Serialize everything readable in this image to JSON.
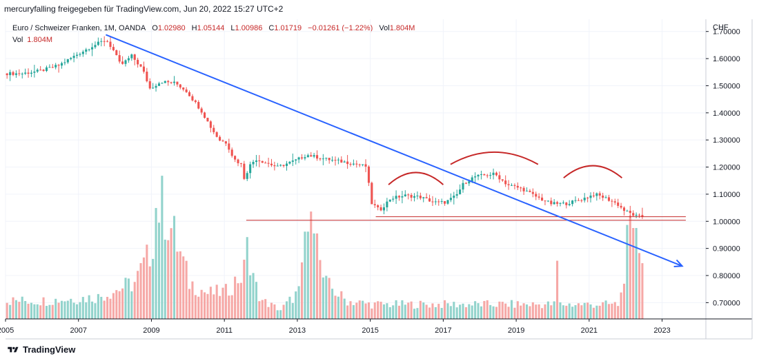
{
  "header": {
    "text": "mercuryfalling freigegeben für TradingView.com, Jun 20, 2022 15:27 UTC+2"
  },
  "legend": {
    "symbol": "Euro / Schweizer Franken, 1M, OANDA",
    "o_label": "O",
    "o_value": "1.02980",
    "h_label": "H",
    "h_value": "1.05144",
    "l_label": "L",
    "l_value": "1.00986",
    "c_label": "C",
    "c_value": "1.01719",
    "change": "−0.01261 (−1.22%)",
    "vol_label": "Vol",
    "vol_value": "1.804M",
    "vol2_label": "Vol",
    "vol2_value": "1.804M"
  },
  "footer": {
    "brand": "TradingView",
    "logo_icon": "tradingview-logo-icon"
  },
  "colors": {
    "up": "#26a69a",
    "down": "#ef5350",
    "trend": "#2962ff",
    "annotation": "#c62828",
    "vol_up": "#92d3cc",
    "vol_down": "#f6a8a6"
  },
  "chart_data": {
    "type": "candlestick",
    "interval": "1M",
    "y_axis_title": "CHF",
    "ylim": [
      0.64,
      1.745
    ],
    "y_ticks": [
      0.7,
      0.8,
      0.9,
      1.0,
      1.1,
      1.2,
      1.3,
      1.4,
      1.5,
      1.6,
      1.7
    ],
    "y_tick_labels": [
      "0.70000",
      "0.80000",
      "0.90000",
      "1.00000",
      "1.10000",
      "1.20000",
      "1.30000",
      "1.40000",
      "1.50000",
      "1.60000",
      "1.70000"
    ],
    "x_range": [
      2005.0,
      2024.2
    ],
    "x_ticks": [
      2005,
      2007,
      2009,
      2011,
      2013,
      2015,
      2017,
      2019,
      2021,
      2023
    ],
    "x_tick_labels": [
      "2005",
      "2007",
      "2009",
      "2011",
      "2013",
      "2015",
      "2017",
      "2019",
      "2021",
      "2023"
    ],
    "close_path": [
      [
        2005.0,
        1.545
      ],
      [
        2005.5,
        1.545
      ],
      [
        2006.0,
        1.555
      ],
      [
        2006.5,
        1.575
      ],
      [
        2007.0,
        1.615
      ],
      [
        2007.4,
        1.645
      ],
      [
        2007.8,
        1.67
      ],
      [
        2008.0,
        1.63
      ],
      [
        2008.2,
        1.575
      ],
      [
        2008.5,
        1.61
      ],
      [
        2008.8,
        1.56
      ],
      [
        2009.0,
        1.49
      ],
      [
        2009.3,
        1.515
      ],
      [
        2009.7,
        1.51
      ],
      [
        2010.0,
        1.48
      ],
      [
        2010.4,
        1.41
      ],
      [
        2010.7,
        1.34
      ],
      [
        2010.9,
        1.3
      ],
      [
        2011.1,
        1.29
      ],
      [
        2011.3,
        1.23
      ],
      [
        2011.5,
        1.21
      ],
      [
        2011.6,
        1.15
      ],
      [
        2011.7,
        1.2
      ],
      [
        2011.9,
        1.23
      ],
      [
        2012.5,
        1.2
      ],
      [
        2013.0,
        1.225
      ],
      [
        2013.3,
        1.245
      ],
      [
        2013.8,
        1.23
      ],
      [
        2014.5,
        1.215
      ],
      [
        2014.95,
        1.202
      ],
      [
        2015.05,
        1.07
      ],
      [
        2015.3,
        1.04
      ],
      [
        2015.6,
        1.085
      ],
      [
        2016.0,
        1.095
      ],
      [
        2016.4,
        1.09
      ],
      [
        2016.8,
        1.07
      ],
      [
        2017.1,
        1.07
      ],
      [
        2017.4,
        1.095
      ],
      [
        2017.6,
        1.14
      ],
      [
        2017.9,
        1.165
      ],
      [
        2018.2,
        1.17
      ],
      [
        2018.45,
        1.175
      ],
      [
        2018.8,
        1.135
      ],
      [
        2019.2,
        1.12
      ],
      [
        2019.6,
        1.09
      ],
      [
        2020.0,
        1.065
      ],
      [
        2020.4,
        1.065
      ],
      [
        2020.8,
        1.08
      ],
      [
        2021.2,
        1.1
      ],
      [
        2021.5,
        1.085
      ],
      [
        2021.8,
        1.065
      ],
      [
        2022.0,
        1.04
      ],
      [
        2022.3,
        1.02
      ],
      [
        2022.45,
        1.017
      ]
    ],
    "volume_path": [
      [
        2005.0,
        0.1
      ],
      [
        2006.0,
        0.1
      ],
      [
        2007.5,
        0.12
      ],
      [
        2008.5,
        0.2
      ],
      [
        2008.9,
        0.35
      ],
      [
        2009.2,
        0.65
      ],
      [
        2009.6,
        0.45
      ],
      [
        2010.0,
        0.2
      ],
      [
        2010.5,
        0.14
      ],
      [
        2011.0,
        0.15
      ],
      [
        2011.6,
        0.28
      ],
      [
        2012.0,
        0.1
      ],
      [
        2012.5,
        0.05
      ],
      [
        2013.0,
        0.15
      ],
      [
        2013.3,
        0.5
      ],
      [
        2013.7,
        0.2
      ],
      [
        2014.3,
        0.1
      ],
      [
        2015.0,
        0.08
      ],
      [
        2016.0,
        0.08
      ],
      [
        2018.0,
        0.08
      ],
      [
        2019.0,
        0.08
      ],
      [
        2021.0,
        0.08
      ],
      [
        2021.8,
        0.08
      ],
      [
        2022.0,
        0.4
      ],
      [
        2022.25,
        0.55
      ],
      [
        2022.45,
        0.3
      ]
    ],
    "volume_spikes": [
      [
        2009.05,
        0.61
      ],
      [
        2011.55,
        0.45
      ],
      [
        2013.2,
        0.48
      ],
      [
        2013.45,
        0.47
      ],
      [
        2020.1,
        0.32
      ],
      [
        2022.1,
        0.57
      ],
      [
        2022.2,
        0.5
      ]
    ],
    "levels": [
      {
        "y": 1.004,
        "x0": 2011.6,
        "x1": 2023.65
      },
      {
        "y": 1.017,
        "x0": 2015.15,
        "x1": 2023.65
      }
    ],
    "trendline": {
      "x0": 2007.75,
      "y0": 1.688,
      "x1": 2023.55,
      "y1": 0.835
    },
    "arcs": [
      {
        "x0": 2015.5,
        "x1": 2017.0,
        "y": 1.135,
        "peak": 1.18
      },
      {
        "x0": 2017.2,
        "x1": 2019.6,
        "y": 1.21,
        "peak": 1.255
      },
      {
        "x0": 2020.3,
        "x1": 2021.9,
        "y": 1.16,
        "peak": 1.205
      }
    ]
  }
}
